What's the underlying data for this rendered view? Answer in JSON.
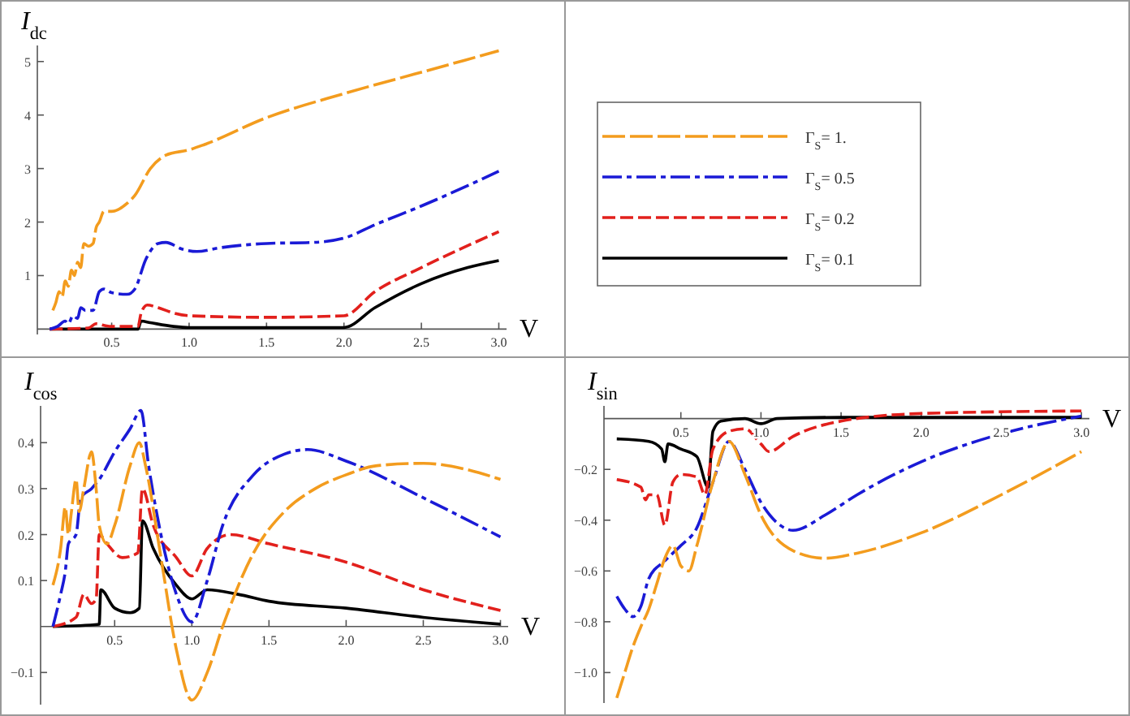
{
  "chart_data": [
    {
      "type": "line",
      "ylabel": "I$_{dc}$",
      "xlabel": "V",
      "xlim": [
        0.02,
        3.05
      ],
      "ylim": [
        -0.1,
        5.3
      ],
      "xticks": [
        0.5,
        {
          "value": 1,
          "label": "1.0"
        },
        1.5,
        {
          "value": 2,
          "label": "2.0"
        },
        2.5,
        {
          "value": 3,
          "label": "3.0"
        }
      ],
      "yticks": [
        1,
        2,
        3,
        4,
        5
      ],
      "legend": "right",
      "grid": false,
      "marker": "none",
      "series": [
        {
          "name": "Γ$_{S}$= 1.",
          "color": "#f39c1e",
          "line_style": "dashed",
          "x": [
            0.12,
            0.14,
            0.16,
            0.18,
            0.2,
            0.22,
            0.24,
            0.26,
            0.28,
            0.3,
            0.32,
            0.35,
            0.38,
            0.4,
            0.42,
            0.45,
            0.5,
            0.6,
            0.65,
            0.75,
            0.85,
            1.0,
            1.1,
            1.5,
            2.0,
            2.5,
            3.0
          ],
          "values": [
            0.35,
            0.5,
            0.7,
            0.6,
            0.9,
            0.8,
            1.1,
            1.0,
            1.25,
            1.15,
            1.6,
            1.55,
            1.6,
            1.9,
            2.0,
            2.2,
            2.2,
            2.35,
            2.5,
            3.0,
            3.25,
            3.35,
            3.45,
            3.95,
            4.4,
            4.8,
            5.2
          ]
        },
        {
          "name": "Γ$_{S}$= 0.5",
          "color": "#1a1ad6",
          "line_style": "dashed",
          "x": [
            0.1,
            0.15,
            0.2,
            0.22,
            0.25,
            0.28,
            0.3,
            0.33,
            0.38,
            0.42,
            0.45,
            0.5,
            0.6,
            0.65,
            0.72,
            0.8,
            0.85,
            0.95,
            1.05,
            1.2,
            1.5,
            1.8,
            2.0,
            2.2,
            2.5,
            3.0
          ],
          "values": [
            0,
            0.05,
            0.15,
            0.1,
            0.25,
            0.2,
            0.4,
            0.35,
            0.35,
            0.7,
            0.75,
            0.68,
            0.65,
            0.75,
            1.3,
            1.6,
            1.62,
            1.5,
            1.45,
            1.52,
            1.6,
            1.62,
            1.7,
            1.95,
            2.3,
            2.95
          ]
        },
        {
          "name": "Γ$_{S}$= 0.2",
          "color": "#e2201c",
          "line_style": "dashed",
          "x": [
            0.1,
            0.35,
            0.4,
            0.45,
            0.5,
            0.67,
            0.69,
            0.73,
            0.8,
            0.9,
            1.0,
            1.5,
            2.0,
            2.2,
            2.5,
            3.0
          ],
          "values": [
            0,
            0.02,
            0.1,
            0.07,
            0.05,
            0.05,
            0.3,
            0.45,
            0.4,
            0.3,
            0.25,
            0.22,
            0.25,
            0.7,
            1.15,
            1.82
          ]
        },
        {
          "name": "Γ$_{S}$= 0.1",
          "color": "#000000",
          "line_style": "solid",
          "x": [
            0.1,
            0.67,
            0.69,
            0.75,
            0.9,
            1.0,
            2.0,
            2.2,
            2.5,
            2.8,
            3.0
          ],
          "values": [
            0,
            0,
            0.15,
            0.12,
            0.05,
            0.03,
            0.03,
            0.4,
            0.85,
            1.15,
            1.28
          ]
        }
      ]
    },
    {
      "type": "line",
      "ylabel": "I$_{cos}$",
      "xlabel": "V",
      "xlim": [
        0.02,
        3.05
      ],
      "ylim": [
        -0.17,
        0.48
      ],
      "xticks": [
        0.5,
        {
          "value": 1,
          "label": "1.0"
        },
        1.5,
        {
          "value": 2,
          "label": "2.0"
        },
        2.5,
        {
          "value": 3,
          "label": "3.0"
        }
      ],
      "yticks": [
        {
          "value": -0.1,
          "label": "−0.1"
        },
        0.1,
        0.2,
        0.3,
        0.4
      ],
      "grid": false,
      "marker": "none",
      "series": [
        {
          "color": "#f39c1e",
          "line_style": "dashed",
          "x": [
            0.1,
            0.15,
            0.18,
            0.2,
            0.22,
            0.25,
            0.27,
            0.3,
            0.35,
            0.38,
            0.4,
            0.45,
            0.5,
            0.6,
            0.66,
            0.7,
            0.8,
            0.9,
            1.0,
            1.1,
            1.2,
            1.4,
            1.6,
            1.8,
            2.0,
            2.2,
            2.5,
            2.8,
            3.0
          ],
          "values": [
            0.09,
            0.17,
            0.26,
            0.2,
            0.25,
            0.32,
            0.25,
            0.3,
            0.38,
            0.3,
            0.22,
            0.18,
            0.22,
            0.35,
            0.4,
            0.35,
            0.15,
            -0.05,
            -0.16,
            -0.1,
            0.0,
            0.16,
            0.25,
            0.3,
            0.33,
            0.35,
            0.355,
            0.34,
            0.32
          ]
        },
        {
          "color": "#1a1ad6",
          "line_style": "dashed",
          "x": [
            0.1,
            0.15,
            0.18,
            0.2,
            0.25,
            0.28,
            0.35,
            0.4,
            0.5,
            0.6,
            0.67,
            0.72,
            0.8,
            0.9,
            1.0,
            1.1,
            1.2,
            1.4,
            1.6,
            1.75,
            2.0,
            2.5,
            3.0
          ],
          "values": [
            0,
            0.07,
            0.12,
            0.18,
            0.2,
            0.28,
            0.3,
            0.32,
            0.38,
            0.43,
            0.47,
            0.35,
            0.2,
            0.07,
            0.01,
            0.1,
            0.22,
            0.33,
            0.375,
            0.385,
            0.36,
            0.28,
            0.195
          ]
        },
        {
          "color": "#e2201c",
          "line_style": "dashed",
          "x": [
            0.1,
            0.25,
            0.3,
            0.35,
            0.38,
            0.4,
            0.45,
            0.55,
            0.65,
            0.68,
            0.75,
            0.9,
            1.0,
            1.1,
            1.25,
            1.5,
            2.0,
            2.5,
            3.0
          ],
          "values": [
            0,
            0.02,
            0.07,
            0.05,
            0.06,
            0.2,
            0.18,
            0.15,
            0.16,
            0.3,
            0.22,
            0.15,
            0.11,
            0.17,
            0.2,
            0.18,
            0.14,
            0.08,
            0.035
          ]
        },
        {
          "color": "#000000",
          "line_style": "solid",
          "x": [
            0.1,
            0.4,
            0.41,
            0.5,
            0.6,
            0.66,
            0.68,
            0.75,
            0.9,
            1.0,
            1.1,
            1.3,
            1.5,
            2.0,
            2.5,
            3.0
          ],
          "values": [
            0,
            0.005,
            0.08,
            0.04,
            0.03,
            0.04,
            0.23,
            0.17,
            0.09,
            0.06,
            0.08,
            0.07,
            0.055,
            0.04,
            0.02,
            0.005
          ]
        }
      ]
    },
    {
      "type": "line",
      "ylabel": "I$_{sin}$",
      "xlabel": "V",
      "xlim": [
        0.02,
        3.05
      ],
      "ylim": [
        -1.12,
        0.05
      ],
      "xticks": [
        0.5,
        {
          "value": 1,
          "label": "1.0"
        },
        1.5,
        {
          "value": 2,
          "label": "2.0"
        },
        2.5,
        {
          "value": 3,
          "label": "3.0"
        }
      ],
      "yticks": [
        {
          "value": -1,
          "label": "−1.0"
        },
        {
          "value": -0.8,
          "label": "−0.8"
        },
        {
          "value": -0.6,
          "label": "−0.6"
        },
        {
          "value": -0.4,
          "label": "−0.4"
        },
        {
          "value": -0.2,
          "label": "−0.2"
        }
      ],
      "grid": false,
      "marker": "none",
      "series": [
        {
          "color": "#f39c1e",
          "line_style": "dashed",
          "x": [
            0.1,
            0.15,
            0.2,
            0.25,
            0.3,
            0.35,
            0.4,
            0.45,
            0.5,
            0.55,
            0.6,
            0.7,
            0.8,
            0.9,
            1.0,
            1.2,
            1.4,
            1.6,
            2.0,
            2.5,
            3.0
          ],
          "values": [
            -1.1,
            -1.0,
            -0.9,
            -0.82,
            -0.75,
            -0.65,
            -0.55,
            -0.5,
            -0.58,
            -0.6,
            -0.5,
            -0.25,
            -0.09,
            -0.22,
            -0.38,
            -0.52,
            -0.55,
            -0.53,
            -0.45,
            -0.3,
            -0.13
          ]
        },
        {
          "color": "#1a1ad6",
          "line_style": "dashed",
          "x": [
            0.1,
            0.15,
            0.2,
            0.25,
            0.3,
            0.4,
            0.5,
            0.6,
            0.7,
            0.8,
            0.9,
            1.0,
            1.1,
            1.2,
            1.4,
            1.6,
            2.0,
            2.5,
            3.0
          ],
          "values": [
            -0.7,
            -0.75,
            -0.78,
            -0.74,
            -0.63,
            -0.56,
            -0.5,
            -0.43,
            -0.25,
            -0.09,
            -0.2,
            -0.33,
            -0.41,
            -0.44,
            -0.38,
            -0.3,
            -0.17,
            -0.06,
            0.01
          ]
        },
        {
          "color": "#e2201c",
          "line_style": "dashed",
          "x": [
            0.1,
            0.25,
            0.28,
            0.3,
            0.35,
            0.4,
            0.45,
            0.5,
            0.6,
            0.65,
            0.7,
            0.8,
            0.9,
            1.0,
            1.05,
            1.2,
            1.5,
            2.0,
            3.0
          ],
          "values": [
            -0.24,
            -0.27,
            -0.32,
            -0.3,
            -0.3,
            -0.42,
            -0.25,
            -0.22,
            -0.23,
            -0.3,
            -0.12,
            -0.05,
            -0.04,
            -0.1,
            -0.13,
            -0.07,
            -0.01,
            0.02,
            0.03
          ]
        },
        {
          "color": "#000000",
          "line_style": "solid",
          "x": [
            0.1,
            0.3,
            0.38,
            0.4,
            0.42,
            0.5,
            0.6,
            0.67,
            0.7,
            0.75,
            0.9,
            1.0,
            1.1,
            1.5,
            2.0,
            3.0
          ],
          "values": [
            -0.08,
            -0.09,
            -0.12,
            -0.17,
            -0.1,
            -0.12,
            -0.15,
            -0.27,
            -0.05,
            -0.01,
            0.0,
            -0.02,
            0.0,
            0.005,
            0.005,
            0.005
          ]
        }
      ]
    }
  ]
}
